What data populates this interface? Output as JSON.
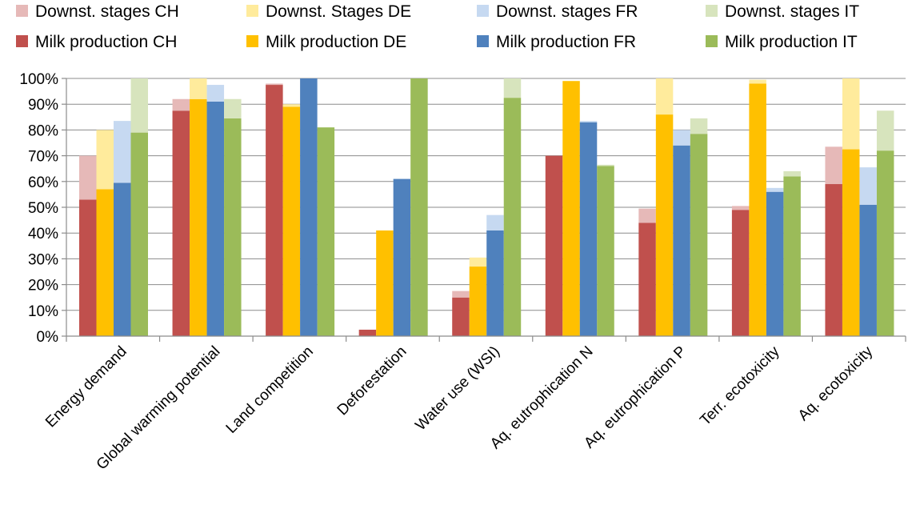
{
  "chart_data": {
    "type": "bar",
    "stacked_pairs": true,
    "categories": [
      "Energy demand",
      "Global warming potential",
      "Land competition",
      "Deforestation",
      "Water use (WSI)",
      "Aq. eutrophication N",
      "Aq. eutrophication P",
      "Terr. ecotoxicity",
      "Aq. ecotoxicity"
    ],
    "ylim": [
      0,
      100
    ],
    "yticks": [
      "0%",
      "10%",
      "20%",
      "30%",
      "40%",
      "50%",
      "60%",
      "70%",
      "80%",
      "90%",
      "100%"
    ],
    "grid": true,
    "legend_position": "top",
    "series": [
      {
        "name": "Milk production CH",
        "country": "CH",
        "part": "milk",
        "color": "#c0504d",
        "values": [
          53,
          87.5,
          97.5,
          2.5,
          15,
          70,
          44,
          49,
          59
        ]
      },
      {
        "name": "Milk production DE",
        "country": "DE",
        "part": "milk",
        "color": "#ffc000",
        "values": [
          57,
          92,
          89,
          41,
          27,
          99,
          86,
          98,
          72.5
        ]
      },
      {
        "name": "Milk production FR",
        "country": "FR",
        "part": "milk",
        "color": "#4f81bd",
        "values": [
          59.5,
          91,
          100,
          61,
          41,
          83,
          74,
          56,
          51
        ]
      },
      {
        "name": "Milk production IT",
        "country": "IT",
        "part": "milk",
        "color": "#9bbb59",
        "values": [
          79,
          84.5,
          81,
          100,
          92.5,
          66,
          78.5,
          62,
          72
        ]
      },
      {
        "name": "Downst. stages CH",
        "country": "CH",
        "part": "downstream",
        "color": "#e6b9b8",
        "values": [
          17,
          4.5,
          0.5,
          0,
          2.5,
          0,
          5.5,
          1.5,
          14.5
        ]
      },
      {
        "name": "Downst. Stages DE",
        "country": "DE",
        "part": "downstream",
        "color": "#ffeb9c",
        "values": [
          23,
          8,
          1,
          0,
          3.5,
          0,
          14,
          1.5,
          27.5
        ]
      },
      {
        "name": "Downst. stages FR",
        "country": "FR",
        "part": "downstream",
        "color": "#c6d9f1",
        "values": [
          24,
          6.5,
          0,
          0,
          6,
          0.5,
          6,
          1.5,
          14.5
        ]
      },
      {
        "name": "Downst. stages IT",
        "country": "IT",
        "part": "downstream",
        "color": "#d7e4bd",
        "values": [
          21,
          7.5,
          0,
          0,
          7.5,
          0.5,
          6,
          2,
          15.5
        ]
      }
    ],
    "legend": [
      {
        "label": "Downst. stages CH",
        "color": "#e6b9b8"
      },
      {
        "label": "Downst. Stages DE",
        "color": "#ffeb9c"
      },
      {
        "label": "Downst. stages FR",
        "color": "#c6d9f1"
      },
      {
        "label": "Downst. stages IT",
        "color": "#d7e4bd"
      },
      {
        "label": "Milk production CH",
        "color": "#c0504d"
      },
      {
        "label": "Milk production DE",
        "color": "#ffc000"
      },
      {
        "label": "Milk production FR",
        "color": "#4f81bd"
      },
      {
        "label": "Milk production IT",
        "color": "#9bbb59"
      }
    ]
  }
}
